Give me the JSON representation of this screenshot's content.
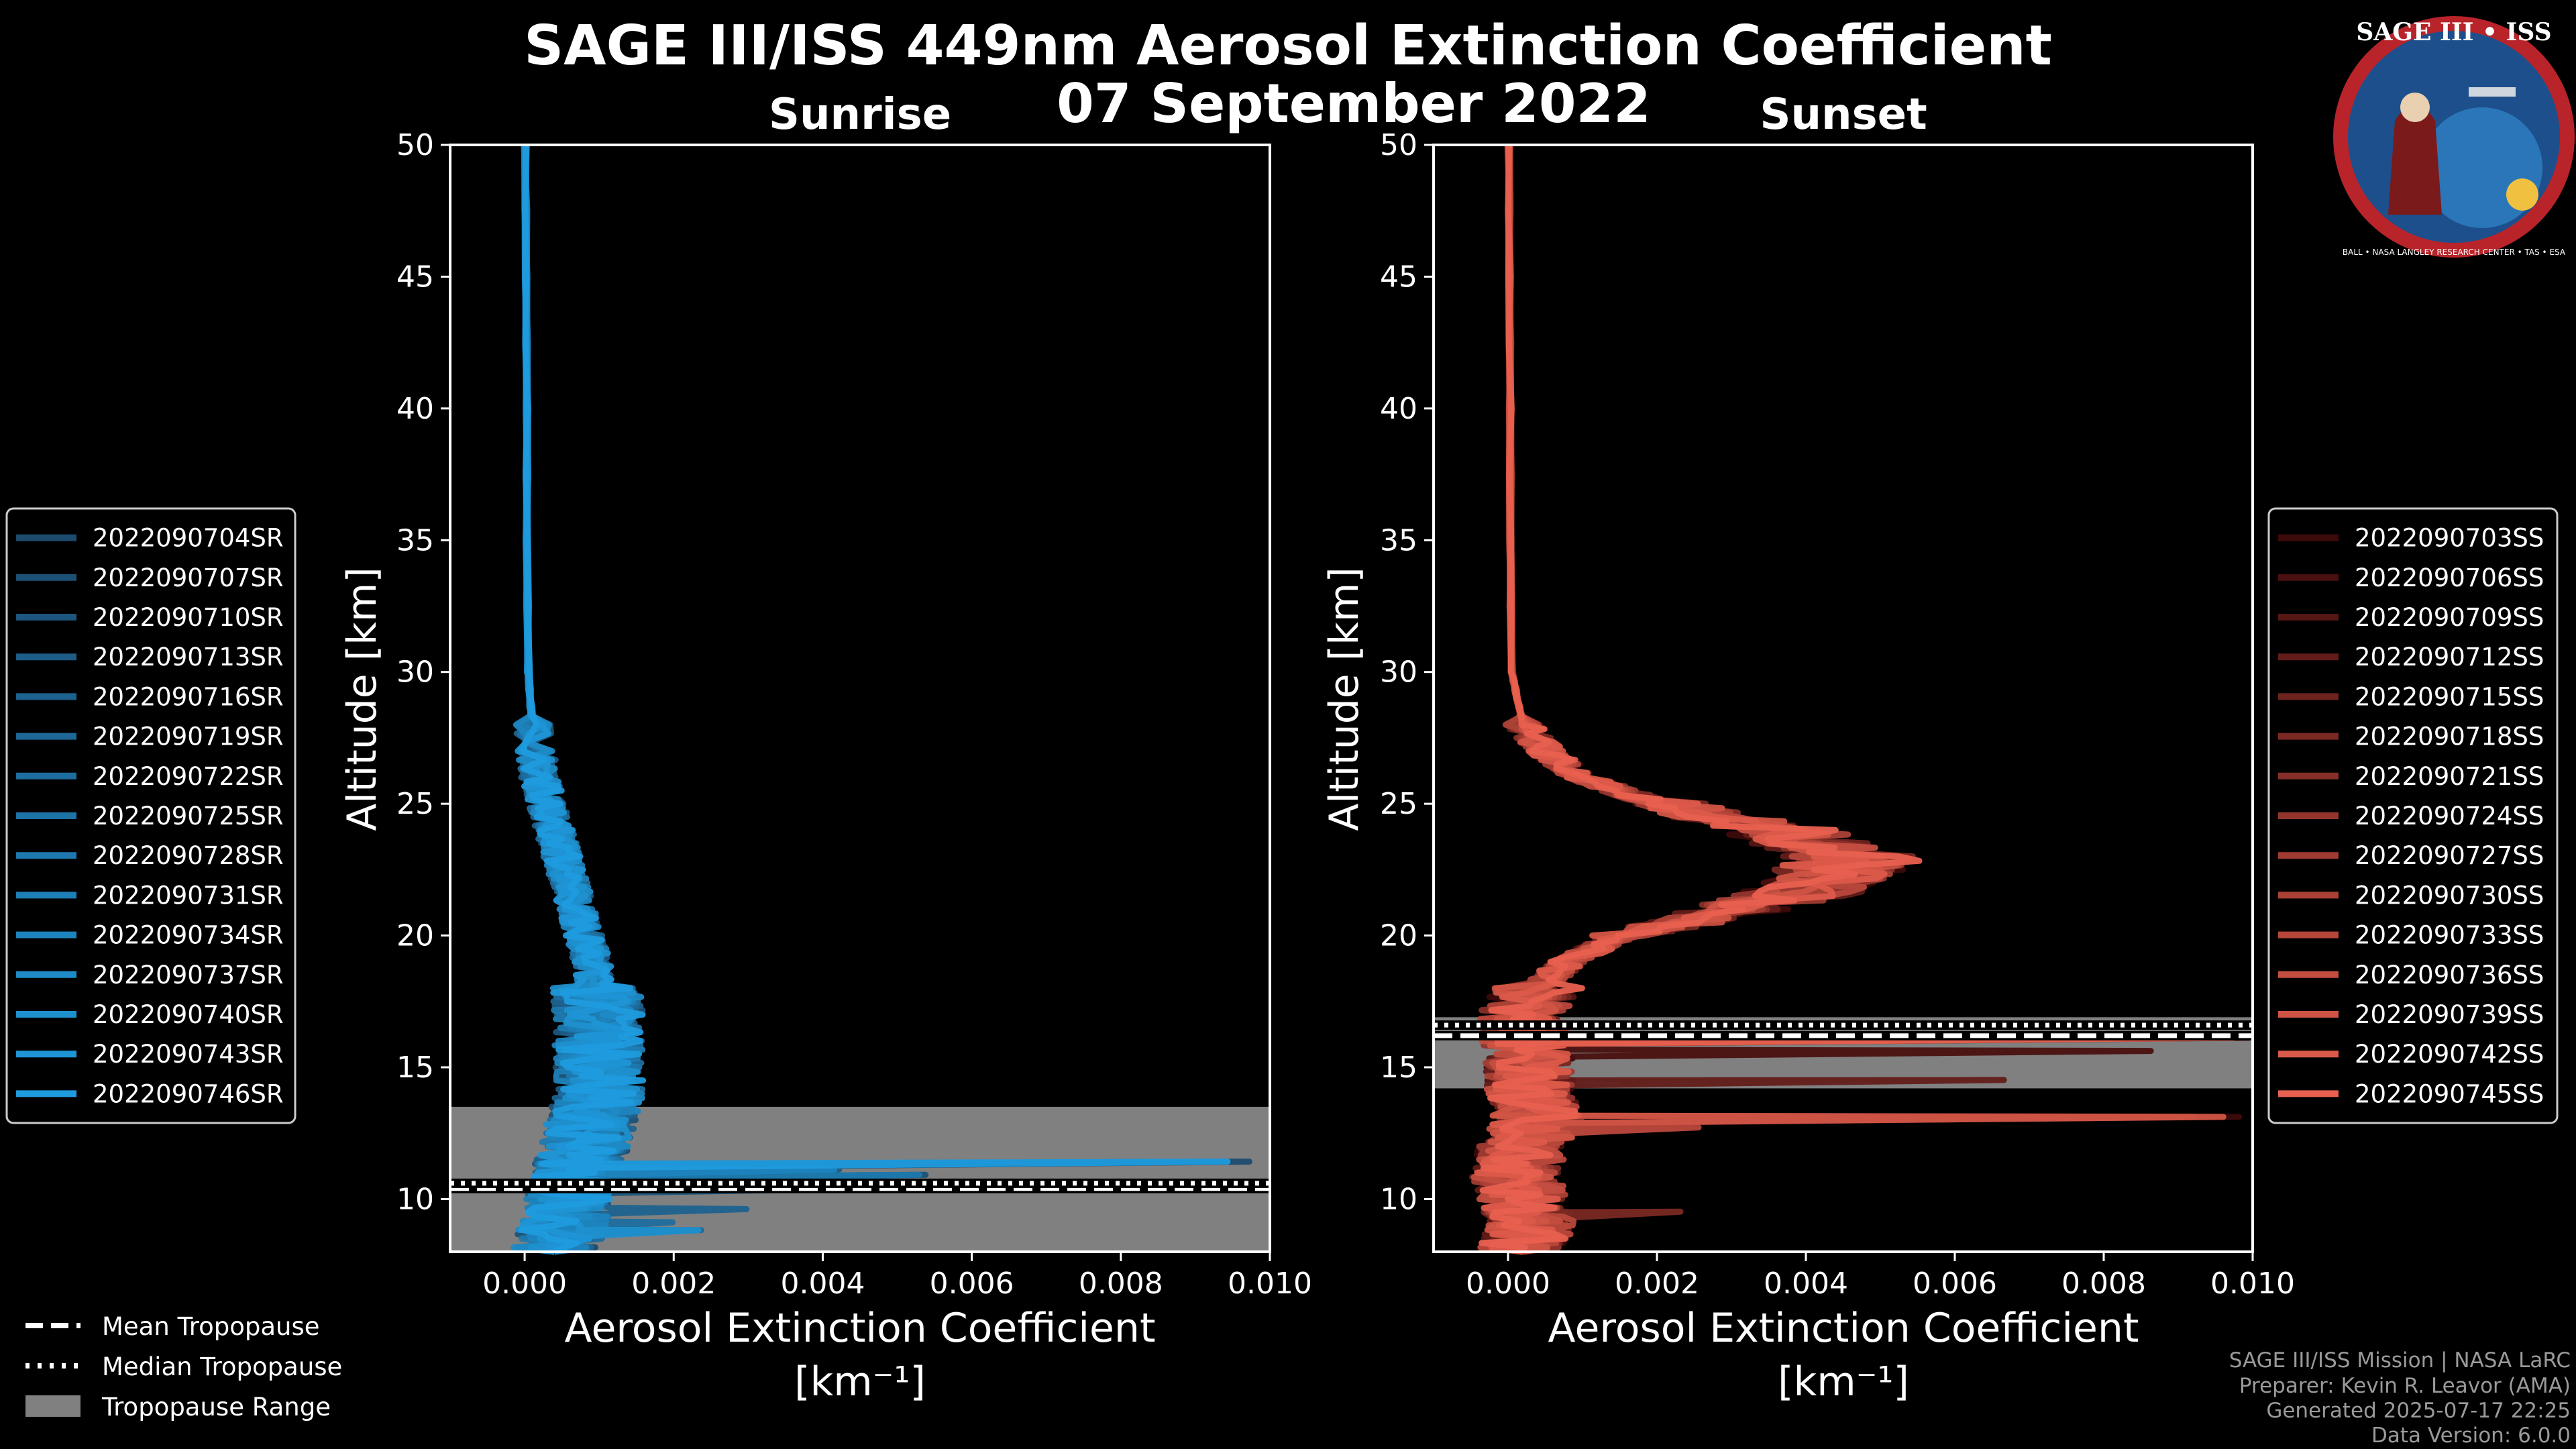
{
  "figure": {
    "title_line1": "SAGE III/ISS 449nm Aerosol Extinction Coefficient",
    "title_line2": "07 September 2022"
  },
  "logo": {
    "text_top": "SAGE III • ISS",
    "text_ring": "BALL • NASA LANGLEY RESEARCH CENTER • TAS • ESA"
  },
  "credits": {
    "line1": "SAGE III/ISS Mission | NASA LaRC",
    "line2": "Preparer: Kevin R. Leavor (AMA)",
    "line3": "Generated 2025-07-17 22:25",
    "line4": "Data Version: 6.0.0"
  },
  "tropo_legend": {
    "mean": "Mean Tropopause",
    "median": "Median Tropopause",
    "range": "Tropopause Range"
  },
  "chart_data": [
    {
      "type": "line",
      "title": "Sunrise",
      "xlabel": "Aerosol Extinction Coefficient",
      "xlabel_units": "[km⁻¹]",
      "ylabel": "Altitude [km]",
      "xlim": [
        -0.001,
        0.01
      ],
      "ylim": [
        8,
        50
      ],
      "xticks": [
        0.0,
        0.002,
        0.004,
        0.006,
        0.008,
        0.01
      ],
      "xtick_labels": [
        "0.000",
        "0.002",
        "0.004",
        "0.006",
        "0.008",
        "0.010"
      ],
      "yticks": [
        10,
        15,
        20,
        25,
        30,
        35,
        40,
        45,
        50
      ],
      "ytick_labels": [
        "10",
        "15",
        "20",
        "25",
        "30",
        "35",
        "40",
        "45",
        "50"
      ],
      "tropopause": {
        "mean": 10.4,
        "median": 10.6,
        "range": [
          8,
          13.5
        ]
      },
      "color_start": "#1c4b6e",
      "color_end": "#1f9bde",
      "legend_position": "left",
      "base_profile": {
        "altitude": [
          50,
          45,
          40,
          35,
          30,
          28,
          26,
          25,
          24,
          23,
          22,
          21,
          20,
          19,
          18,
          17,
          16,
          15,
          14,
          13,
          12,
          11,
          10,
          9,
          8
        ],
        "extinction": [
          1e-05,
          2e-05,
          3e-05,
          3e-05,
          5e-05,
          0.0001,
          0.0002,
          0.0003,
          0.0004,
          0.0005,
          0.0006,
          0.0007,
          0.0008,
          0.0009,
          0.00095,
          0.001,
          0.001,
          0.001,
          0.001,
          0.0009,
          0.0008,
          0.0007,
          0.0006,
          0.0005,
          0.0004
        ]
      },
      "spikes": [
        {
          "altitude": 11.3,
          "extinction": 0.01
        },
        {
          "altitude": 10.8,
          "extinction": 0.0058
        },
        {
          "altitude": 10.3,
          "extinction": 0.005
        },
        {
          "altitude": 11.0,
          "extinction": 0.0045
        },
        {
          "altitude": 9.5,
          "extinction": 0.003
        },
        {
          "altitude": 8.7,
          "extinction": 0.0025
        },
        {
          "altitude": 9.0,
          "extinction": 0.0022
        }
      ],
      "series": [
        {
          "name": "2022090704SR"
        },
        {
          "name": "2022090707SR"
        },
        {
          "name": "2022090710SR"
        },
        {
          "name": "2022090713SR"
        },
        {
          "name": "2022090716SR"
        },
        {
          "name": "2022090719SR"
        },
        {
          "name": "2022090722SR"
        },
        {
          "name": "2022090725SR"
        },
        {
          "name": "2022090728SR"
        },
        {
          "name": "2022090731SR"
        },
        {
          "name": "2022090734SR"
        },
        {
          "name": "2022090737SR"
        },
        {
          "name": "2022090740SR"
        },
        {
          "name": "2022090743SR"
        },
        {
          "name": "2022090746SR"
        }
      ]
    },
    {
      "type": "line",
      "title": "Sunset",
      "xlabel": "Aerosol Extinction Coefficient",
      "xlabel_units": "[km⁻¹]",
      "ylabel": "Altitude [km]",
      "xlim": [
        -0.001,
        0.01
      ],
      "ylim": [
        8,
        50
      ],
      "xticks": [
        0.0,
        0.002,
        0.004,
        0.006,
        0.008,
        0.01
      ],
      "xtick_labels": [
        "0.000",
        "0.002",
        "0.004",
        "0.006",
        "0.008",
        "0.010"
      ],
      "yticks": [
        10,
        15,
        20,
        25,
        30,
        35,
        40,
        45,
        50
      ],
      "ytick_labels": [
        "10",
        "15",
        "20",
        "25",
        "30",
        "35",
        "40",
        "45",
        "50"
      ],
      "tropopause": {
        "mean": 16.2,
        "median": 16.6,
        "range": [
          14.2,
          16.9
        ]
      },
      "color_start": "#3d0a0a",
      "color_end": "#e8604f",
      "legend_position": "right",
      "base_profile": {
        "altitude": [
          50,
          45,
          40,
          35,
          30,
          28,
          27,
          26,
          25,
          24,
          23,
          22,
          21,
          20,
          19,
          18,
          17,
          16,
          15,
          14,
          13,
          12,
          11,
          10,
          9,
          8
        ],
        "extinction": [
          1e-05,
          2e-05,
          3e-05,
          3e-05,
          5e-05,
          0.0002,
          0.0005,
          0.001,
          0.002,
          0.0035,
          0.0045,
          0.0042,
          0.003,
          0.0015,
          0.0008,
          0.0004,
          0.0002,
          0.0002,
          0.0003,
          0.0003,
          0.0004,
          0.0002,
          0.0001,
          0.0002,
          0.0003,
          0.0002
        ]
      },
      "spikes": [
        {
          "altitude": 13.0,
          "extinction": 0.01
        },
        {
          "altitude": 15.5,
          "extinction": 0.0092
        },
        {
          "altitude": 16.0,
          "extinction": 0.01
        },
        {
          "altitude": 14.4,
          "extinction": 0.007
        },
        {
          "altitude": 12.6,
          "extinction": 0.0027
        },
        {
          "altitude": 9.4,
          "extinction": 0.0024
        }
      ],
      "series": [
        {
          "name": "2022090703SS"
        },
        {
          "name": "2022090706SS"
        },
        {
          "name": "2022090709SS"
        },
        {
          "name": "2022090712SS"
        },
        {
          "name": "2022090715SS"
        },
        {
          "name": "2022090718SS"
        },
        {
          "name": "2022090721SS"
        },
        {
          "name": "2022090724SS"
        },
        {
          "name": "2022090727SS"
        },
        {
          "name": "2022090730SS"
        },
        {
          "name": "2022090733SS"
        },
        {
          "name": "2022090736SS"
        },
        {
          "name": "2022090739SS"
        },
        {
          "name": "2022090742SS"
        },
        {
          "name": "2022090745SS"
        }
      ]
    }
  ]
}
